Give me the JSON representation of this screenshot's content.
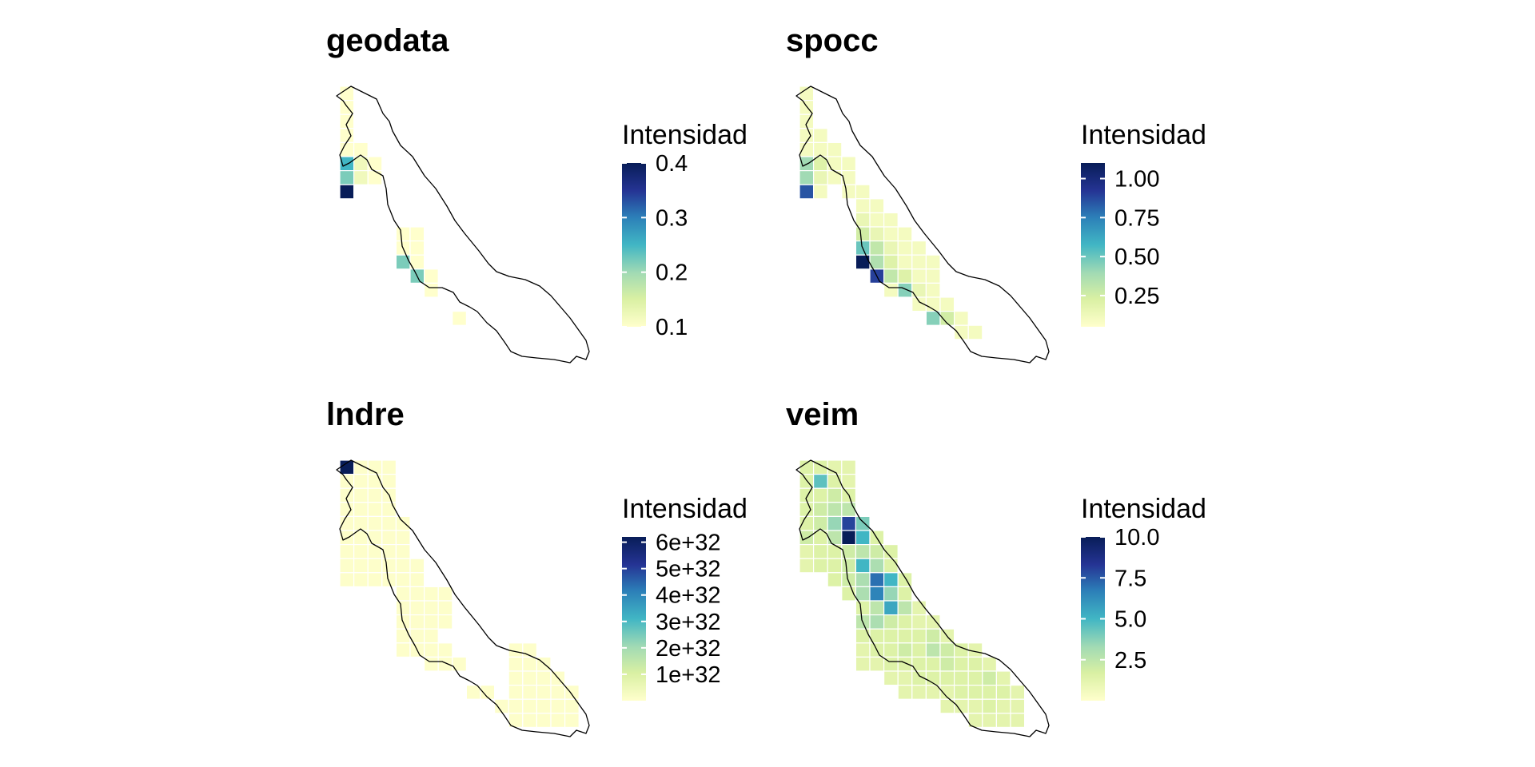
{
  "colors": {
    "scale": [
      "#ffffcc",
      "#d9f0a3",
      "#a1dab4",
      "#41b6c4",
      "#2c7fb8",
      "#253494",
      "#081d58"
    ],
    "outline": "#000000",
    "background": "#ffffff"
  },
  "panels": [
    {
      "id": "geodata",
      "title": "geodata",
      "legend": {
        "title": "Intensidad",
        "ticks": [
          "0.4",
          "0.3",
          "0.2",
          "0.1"
        ],
        "tick_values": [
          0.4,
          0.3,
          0.2,
          0.1
        ],
        "range": [
          0.1,
          0.4
        ]
      },
      "cells": [
        [
          0,
          0,
          0.1
        ],
        [
          0,
          1,
          0.1
        ],
        [
          0,
          2,
          0.1
        ],
        [
          0,
          3,
          0.1
        ],
        [
          0,
          4,
          0.1
        ],
        [
          1,
          4,
          0.1
        ],
        [
          0,
          5,
          0.25
        ],
        [
          1,
          5,
          0.12
        ],
        [
          2,
          5,
          0.1
        ],
        [
          0,
          6,
          0.22
        ],
        [
          1,
          6,
          0.12
        ],
        [
          2,
          6,
          0.1
        ],
        [
          0,
          7,
          0.4
        ],
        [
          4,
          10,
          0.1
        ],
        [
          5,
          10,
          0.1
        ],
        [
          4,
          11,
          0.1
        ],
        [
          5,
          11,
          0.1
        ],
        [
          4,
          12,
          0.22
        ],
        [
          5,
          12,
          0.1
        ],
        [
          5,
          13,
          0.22
        ],
        [
          6,
          13,
          0.1
        ],
        [
          6,
          14,
          0.1
        ],
        [
          8,
          16,
          0.1
        ]
      ]
    },
    {
      "id": "spocc",
      "title": "spocc",
      "legend": {
        "title": "Intensidad",
        "ticks": [
          "1.00",
          "0.75",
          "0.50",
          "0.25"
        ],
        "tick_values": [
          1.0,
          0.75,
          0.5,
          0.25
        ],
        "range": [
          0.05,
          1.1
        ]
      },
      "cells": [
        [
          0,
          0,
          0.1
        ],
        [
          0,
          1,
          0.1
        ],
        [
          0,
          2,
          0.1
        ],
        [
          0,
          3,
          0.1
        ],
        [
          1,
          3,
          0.1
        ],
        [
          0,
          4,
          0.1
        ],
        [
          1,
          4,
          0.1
        ],
        [
          2,
          4,
          0.1
        ],
        [
          0,
          5,
          0.4
        ],
        [
          1,
          5,
          0.2
        ],
        [
          2,
          5,
          0.1
        ],
        [
          3,
          5,
          0.1
        ],
        [
          0,
          6,
          0.4
        ],
        [
          1,
          6,
          0.15
        ],
        [
          2,
          6,
          0.1
        ],
        [
          3,
          6,
          0.1
        ],
        [
          0,
          7,
          0.85
        ],
        [
          1,
          7,
          0.1
        ],
        [
          3,
          7,
          0.1
        ],
        [
          4,
          7,
          0.1
        ],
        [
          4,
          8,
          0.1
        ],
        [
          5,
          8,
          0.1
        ],
        [
          4,
          9,
          0.15
        ],
        [
          5,
          9,
          0.1
        ],
        [
          6,
          9,
          0.1
        ],
        [
          4,
          10,
          0.25
        ],
        [
          5,
          10,
          0.15
        ],
        [
          6,
          10,
          0.1
        ],
        [
          7,
          10,
          0.1
        ],
        [
          4,
          11,
          0.5
        ],
        [
          5,
          11,
          0.3
        ],
        [
          6,
          11,
          0.15
        ],
        [
          7,
          11,
          0.1
        ],
        [
          8,
          11,
          0.1
        ],
        [
          4,
          12,
          1.1
        ],
        [
          5,
          12,
          0.35
        ],
        [
          6,
          12,
          0.2
        ],
        [
          7,
          12,
          0.1
        ],
        [
          8,
          12,
          0.1
        ],
        [
          9,
          12,
          0.1
        ],
        [
          5,
          13,
          0.9
        ],
        [
          6,
          13,
          0.3
        ],
        [
          7,
          13,
          0.2
        ],
        [
          8,
          13,
          0.1
        ],
        [
          9,
          13,
          0.1
        ],
        [
          6,
          14,
          0.1
        ],
        [
          7,
          14,
          0.45
        ],
        [
          8,
          14,
          0.15
        ],
        [
          9,
          14,
          0.1
        ],
        [
          8,
          15,
          0.1
        ],
        [
          9,
          15,
          0.1
        ],
        [
          10,
          15,
          0.1
        ],
        [
          9,
          16,
          0.45
        ],
        [
          10,
          16,
          0.25
        ],
        [
          11,
          16,
          0.1
        ],
        [
          11,
          17,
          0.1
        ],
        [
          12,
          17,
          0.1
        ]
      ]
    },
    {
      "id": "lndre",
      "title": "lndre",
      "legend": {
        "title": "Intensidad",
        "ticks": [
          "6e+32",
          "5e+32",
          "4e+32",
          "3e+32",
          "2e+32",
          "1e+32"
        ],
        "tick_values": [
          6,
          5,
          4,
          3,
          2,
          1
        ],
        "range": [
          0,
          6.2
        ]
      },
      "cells": [
        [
          0,
          0,
          6.2
        ],
        [
          1,
          0,
          0.05
        ],
        [
          2,
          0,
          0.05
        ],
        [
          3,
          0,
          0.05
        ],
        [
          0,
          1,
          0.05
        ],
        [
          1,
          1,
          0.05
        ],
        [
          2,
          1,
          0.05
        ],
        [
          3,
          1,
          0.05
        ],
        [
          0,
          2,
          0.05
        ],
        [
          1,
          2,
          0.05
        ],
        [
          2,
          2,
          0.05
        ],
        [
          3,
          2,
          0.05
        ],
        [
          0,
          3,
          0.05
        ],
        [
          1,
          3,
          0.05
        ],
        [
          2,
          3,
          0.05
        ],
        [
          3,
          3,
          0.05
        ],
        [
          0,
          4,
          0.05
        ],
        [
          1,
          4,
          0.05
        ],
        [
          2,
          4,
          0.05
        ],
        [
          3,
          4,
          0.05
        ],
        [
          4,
          4,
          0.05
        ],
        [
          0,
          5,
          0.05
        ],
        [
          1,
          5,
          0.05
        ],
        [
          2,
          5,
          0.05
        ],
        [
          3,
          5,
          0.05
        ],
        [
          4,
          5,
          0.05
        ],
        [
          0,
          6,
          0.05
        ],
        [
          1,
          6,
          0.05
        ],
        [
          2,
          6,
          0.05
        ],
        [
          3,
          6,
          0.05
        ],
        [
          4,
          6,
          0.05
        ],
        [
          0,
          7,
          0.05
        ],
        [
          1,
          7,
          0.05
        ],
        [
          2,
          7,
          0.05
        ],
        [
          3,
          7,
          0.05
        ],
        [
          4,
          7,
          0.05
        ],
        [
          5,
          7,
          0.05
        ],
        [
          0,
          8,
          0.05
        ],
        [
          1,
          8,
          0.05
        ],
        [
          2,
          8,
          0.05
        ],
        [
          3,
          8,
          0.05
        ],
        [
          4,
          8,
          0.05
        ],
        [
          5,
          8,
          0.05
        ],
        [
          4,
          9,
          0.05
        ],
        [
          5,
          9,
          0.05
        ],
        [
          6,
          9,
          0.05
        ],
        [
          7,
          9,
          0.05
        ],
        [
          4,
          10,
          0.05
        ],
        [
          5,
          10,
          0.05
        ],
        [
          6,
          10,
          0.05
        ],
        [
          7,
          10,
          0.05
        ],
        [
          4,
          11,
          0.05
        ],
        [
          5,
          11,
          0.05
        ],
        [
          6,
          11,
          0.05
        ],
        [
          7,
          11,
          0.05
        ],
        [
          4,
          12,
          0.05
        ],
        [
          5,
          12,
          0.05
        ],
        [
          6,
          12,
          0.05
        ],
        [
          4,
          13,
          0.05
        ],
        [
          5,
          13,
          0.05
        ],
        [
          6,
          13,
          0.05
        ],
        [
          7,
          13,
          0.05
        ],
        [
          6,
          14,
          0.05
        ],
        [
          7,
          14,
          0.05
        ],
        [
          8,
          14,
          0.05
        ],
        [
          12,
          13,
          0.05
        ],
        [
          13,
          13,
          0.05
        ],
        [
          12,
          14,
          0.05
        ],
        [
          13,
          14,
          0.05
        ],
        [
          14,
          14,
          0.05
        ],
        [
          12,
          15,
          0.05
        ],
        [
          13,
          15,
          0.05
        ],
        [
          14,
          15,
          0.05
        ],
        [
          15,
          15,
          0.05
        ],
        [
          9,
          16,
          0.05
        ],
        [
          10,
          16,
          0.05
        ],
        [
          12,
          16,
          0.05
        ],
        [
          13,
          16,
          0.05
        ],
        [
          14,
          16,
          0.05
        ],
        [
          15,
          16,
          0.05
        ],
        [
          16,
          16,
          0.05
        ],
        [
          11,
          17,
          0.05
        ],
        [
          12,
          17,
          0.05
        ],
        [
          13,
          17,
          0.05
        ],
        [
          14,
          17,
          0.05
        ],
        [
          15,
          17,
          0.05
        ],
        [
          16,
          17,
          0.05
        ],
        [
          12,
          18,
          0.05
        ],
        [
          13,
          18,
          0.05
        ],
        [
          14,
          18,
          0.05
        ],
        [
          15,
          18,
          0.05
        ],
        [
          16,
          18,
          0.05
        ]
      ]
    },
    {
      "id": "veim",
      "title": "veim",
      "legend": {
        "title": "Intensidad",
        "ticks": [
          "10.0",
          "7.5",
          "5.0",
          "2.5"
        ],
        "tick_values": [
          10,
          7.5,
          5,
          2.5
        ],
        "range": [
          0,
          10
        ]
      },
      "cells": [
        [
          0,
          0,
          1.5
        ],
        [
          1,
          0,
          1.5
        ],
        [
          2,
          0,
          1.2
        ],
        [
          3,
          0,
          1.2
        ],
        [
          0,
          1,
          1.5
        ],
        [
          1,
          1,
          4.5
        ],
        [
          2,
          1,
          1.5
        ],
        [
          3,
          1,
          1.2
        ],
        [
          0,
          2,
          1.5
        ],
        [
          1,
          2,
          1.5
        ],
        [
          2,
          2,
          2
        ],
        [
          3,
          2,
          1.5
        ],
        [
          0,
          3,
          1.5
        ],
        [
          1,
          3,
          2
        ],
        [
          2,
          3,
          2.5
        ],
        [
          3,
          3,
          2.5
        ],
        [
          0,
          4,
          1.5
        ],
        [
          1,
          4,
          2
        ],
        [
          2,
          4,
          3.5
        ],
        [
          3,
          4,
          8
        ],
        [
          4,
          4,
          4
        ],
        [
          0,
          5,
          2
        ],
        [
          1,
          5,
          1.5
        ],
        [
          2,
          5,
          2.5
        ],
        [
          3,
          5,
          10
        ],
        [
          4,
          5,
          5
        ],
        [
          5,
          5,
          1.5
        ],
        [
          0,
          6,
          1.2
        ],
        [
          1,
          6,
          1.5
        ],
        [
          2,
          6,
          1.5
        ],
        [
          3,
          6,
          2
        ],
        [
          4,
          6,
          2.5
        ],
        [
          5,
          6,
          2
        ],
        [
          6,
          6,
          1.5
        ],
        [
          0,
          7,
          1.2
        ],
        [
          1,
          7,
          1.5
        ],
        [
          2,
          7,
          1.5
        ],
        [
          3,
          7,
          2
        ],
        [
          4,
          7,
          5
        ],
        [
          5,
          7,
          3
        ],
        [
          6,
          7,
          1.5
        ],
        [
          2,
          8,
          1.5
        ],
        [
          3,
          8,
          2
        ],
        [
          4,
          8,
          3
        ],
        [
          5,
          8,
          7
        ],
        [
          6,
          8,
          5
        ],
        [
          7,
          8,
          1.5
        ],
        [
          3,
          9,
          1.5
        ],
        [
          4,
          9,
          3
        ],
        [
          5,
          9,
          6.5
        ],
        [
          6,
          9,
          3.5
        ],
        [
          7,
          9,
          1.5
        ],
        [
          4,
          10,
          1.5
        ],
        [
          5,
          10,
          2.5
        ],
        [
          6,
          10,
          5.5
        ],
        [
          7,
          10,
          2.5
        ],
        [
          8,
          10,
          1.2
        ],
        [
          4,
          11,
          2.5
        ],
        [
          5,
          11,
          3
        ],
        [
          6,
          11,
          2
        ],
        [
          7,
          11,
          1.5
        ],
        [
          8,
          11,
          1.2
        ],
        [
          9,
          11,
          1.2
        ],
        [
          4,
          12,
          1.5
        ],
        [
          5,
          12,
          1.5
        ],
        [
          6,
          12,
          1.5
        ],
        [
          7,
          12,
          1.5
        ],
        [
          8,
          12,
          1.5
        ],
        [
          9,
          12,
          2
        ],
        [
          10,
          12,
          1.2
        ],
        [
          4,
          13,
          1.2
        ],
        [
          5,
          13,
          1.5
        ],
        [
          6,
          13,
          1.5
        ],
        [
          7,
          13,
          2
        ],
        [
          8,
          13,
          1.5
        ],
        [
          9,
          13,
          2.5
        ],
        [
          10,
          13,
          2
        ],
        [
          11,
          13,
          1.5
        ],
        [
          12,
          13,
          1.2
        ],
        [
          4,
          14,
          1.2
        ],
        [
          5,
          14,
          1.2
        ],
        [
          6,
          14,
          1.5
        ],
        [
          7,
          14,
          1.5
        ],
        [
          8,
          14,
          1.5
        ],
        [
          9,
          14,
          1.5
        ],
        [
          10,
          14,
          2
        ],
        [
          11,
          14,
          1.5
        ],
        [
          12,
          14,
          1.5
        ],
        [
          13,
          14,
          1.2
        ],
        [
          6,
          15,
          1.2
        ],
        [
          7,
          15,
          1.2
        ],
        [
          8,
          15,
          1.5
        ],
        [
          9,
          15,
          1.5
        ],
        [
          10,
          15,
          1.5
        ],
        [
          11,
          15,
          1.5
        ],
        [
          12,
          15,
          1.5
        ],
        [
          13,
          15,
          2
        ],
        [
          14,
          15,
          1.2
        ],
        [
          7,
          16,
          1.2
        ],
        [
          8,
          16,
          1.2
        ],
        [
          9,
          16,
          1.2
        ],
        [
          10,
          16,
          1.2
        ],
        [
          11,
          16,
          1.5
        ],
        [
          12,
          16,
          1.5
        ],
        [
          13,
          16,
          1.5
        ],
        [
          14,
          16,
          1.5
        ],
        [
          15,
          16,
          1.2
        ],
        [
          10,
          17,
          1.2
        ],
        [
          11,
          17,
          1.2
        ],
        [
          12,
          17,
          1.2
        ],
        [
          13,
          17,
          1.5
        ],
        [
          14,
          17,
          1.2
        ],
        [
          15,
          17,
          1.2
        ],
        [
          12,
          18,
          1.2
        ],
        [
          13,
          18,
          1.2
        ],
        [
          14,
          18,
          1.2
        ],
        [
          15,
          18,
          1.2
        ]
      ]
    }
  ]
}
